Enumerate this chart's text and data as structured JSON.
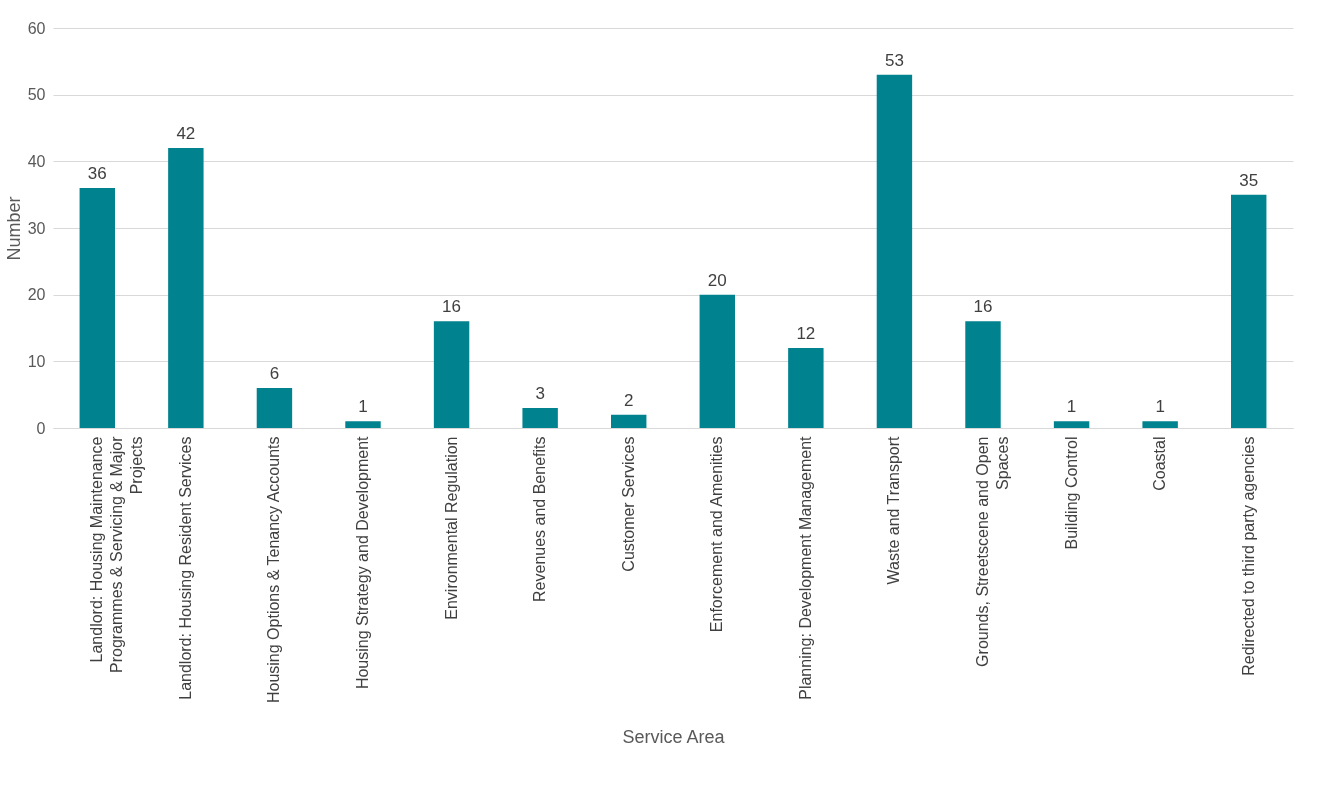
{
  "chart_data": {
    "type": "bar",
    "xlabel": "Service Area",
    "ylabel": "Number",
    "categories": [
      "Landlord: Housing Maintenance Programmes & Servicing & Major Projects",
      "Landlord: Housing Resident Services",
      "Housing Options & Tenancy Accounts",
      "Housing Strategy and Development",
      "Environmental Regulation",
      "Revenues and Benefits",
      "Customer Services",
      "Enforcement and Amenities",
      "Planning: Development Management",
      "Waste and Transport",
      "Grounds, Streetscene and Open Spaces",
      "Building Control",
      "Coastal",
      "Redirected to third party agencies"
    ],
    "values": [
      36,
      42,
      6,
      1,
      16,
      3,
      2,
      20,
      12,
      53,
      16,
      1,
      1,
      35
    ],
    "color": "#00828f",
    "ylim": [
      0,
      60
    ],
    "yticks": [
      0,
      10,
      20,
      30,
      40,
      50,
      60
    ],
    "grid": "y",
    "data_labels": true
  }
}
